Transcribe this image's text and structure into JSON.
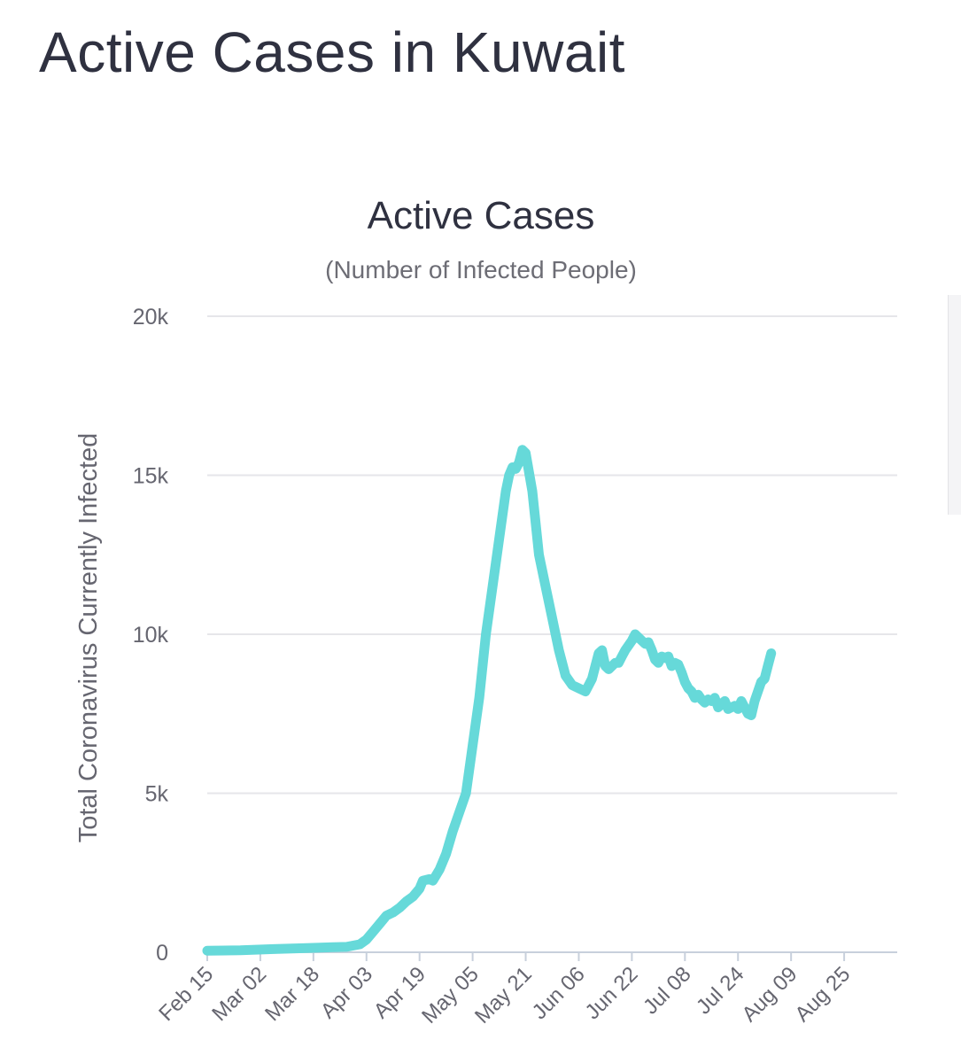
{
  "page": {
    "title": "Active Cases in Kuwait"
  },
  "chart_data": {
    "type": "line",
    "title": "Active Cases",
    "subtitle": "(Number of Infected People)",
    "xlabel": "",
    "ylabel": "Total Coronavirus Currently Infected",
    "ylim": [
      0,
      20000
    ],
    "y_ticks": [
      0,
      5000,
      10000,
      15000,
      20000
    ],
    "y_tick_labels": [
      "0",
      "5k",
      "10k",
      "15k",
      "20k"
    ],
    "x_tick_labels": [
      "Feb 15",
      "Mar 02",
      "Mar 18",
      "Apr 03",
      "Apr 19",
      "May 05",
      "May 21",
      "Jun 06",
      "Jun 22",
      "Jul 08",
      "Jul 24",
      "Aug 09",
      "Aug 25"
    ],
    "x_tick_days": [
      0,
      16,
      32,
      48,
      64,
      80,
      96,
      112,
      128,
      144,
      160,
      176,
      192
    ],
    "x_range_days": [
      0,
      208
    ],
    "grid": true,
    "line_color": "#66d9d9",
    "series": [
      {
        "name": "Active Cases",
        "points": [
          [
            0,
            50
          ],
          [
            10,
            60
          ],
          [
            20,
            100
          ],
          [
            30,
            130
          ],
          [
            38,
            160
          ],
          [
            42,
            170
          ],
          [
            46,
            250
          ],
          [
            48,
            400
          ],
          [
            50,
            650
          ],
          [
            52,
            900
          ],
          [
            54,
            1150
          ],
          [
            56,
            1250
          ],
          [
            58,
            1400
          ],
          [
            60,
            1600
          ],
          [
            62,
            1750
          ],
          [
            64,
            2000
          ],
          [
            65,
            2250
          ],
          [
            67,
            2300
          ],
          [
            68,
            2250
          ],
          [
            70,
            2600
          ],
          [
            72,
            3100
          ],
          [
            74,
            3800
          ],
          [
            76,
            4400
          ],
          [
            78,
            5000
          ],
          [
            80,
            6500
          ],
          [
            82,
            8000
          ],
          [
            84,
            10000
          ],
          [
            86,
            11500
          ],
          [
            88,
            13000
          ],
          [
            90,
            14500
          ],
          [
            91,
            15000
          ],
          [
            92,
            15250
          ],
          [
            93,
            15200
          ],
          [
            94,
            15400
          ],
          [
            95,
            15800
          ],
          [
            96,
            15700
          ],
          [
            98,
            14500
          ],
          [
            100,
            12500
          ],
          [
            102,
            11500
          ],
          [
            104,
            10500
          ],
          [
            106,
            9500
          ],
          [
            108,
            8700
          ],
          [
            110,
            8400
          ],
          [
            112,
            8300
          ],
          [
            114,
            8200
          ],
          [
            116,
            8600
          ],
          [
            118,
            9400
          ],
          [
            119,
            9500
          ],
          [
            120,
            9000
          ],
          [
            121,
            8900
          ],
          [
            122,
            9000
          ],
          [
            123,
            9100
          ],
          [
            124,
            9100
          ],
          [
            125,
            9300
          ],
          [
            126,
            9500
          ],
          [
            128,
            9800
          ],
          [
            129,
            10000
          ],
          [
            130,
            9900
          ],
          [
            131,
            9800
          ],
          [
            132,
            9700
          ],
          [
            133,
            9750
          ],
          [
            134,
            9500
          ],
          [
            135,
            9200
          ],
          [
            136,
            9100
          ],
          [
            137,
            9300
          ],
          [
            138,
            9250
          ],
          [
            139,
            9300
          ],
          [
            140,
            9000
          ],
          [
            141,
            9100
          ],
          [
            142,
            9050
          ],
          [
            143,
            8800
          ],
          [
            144,
            8500
          ],
          [
            145,
            8300
          ],
          [
            146,
            8200
          ],
          [
            147,
            8000
          ],
          [
            148,
            8100
          ],
          [
            149,
            7950
          ],
          [
            150,
            7850
          ],
          [
            151,
            7950
          ],
          [
            152,
            7900
          ],
          [
            153,
            8000
          ],
          [
            154,
            7700
          ],
          [
            155,
            7800
          ],
          [
            156,
            7900
          ],
          [
            157,
            7650
          ],
          [
            158,
            7700
          ],
          [
            159,
            7750
          ],
          [
            160,
            7650
          ],
          [
            161,
            7900
          ],
          [
            162,
            7700
          ],
          [
            163,
            7500
          ],
          [
            164,
            7450
          ],
          [
            165,
            7900
          ],
          [
            166,
            8200
          ],
          [
            167,
            8500
          ],
          [
            168,
            8600
          ],
          [
            169,
            9000
          ],
          [
            170,
            9400
          ]
        ]
      }
    ]
  }
}
